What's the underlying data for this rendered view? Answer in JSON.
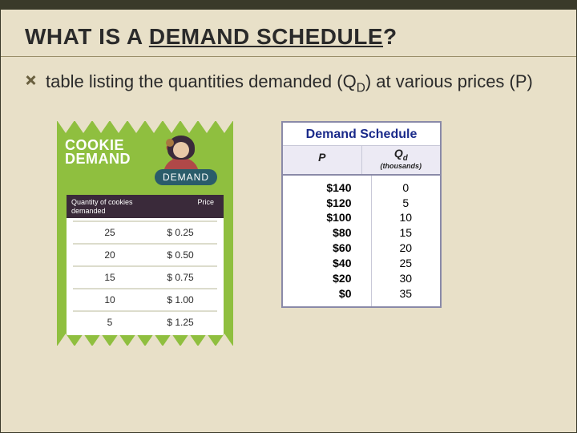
{
  "title_prefix": "WHAT IS A ",
  "title_underlined": "DEMAND SCHEDULE",
  "title_suffix": "?",
  "bullet": {
    "pre": "table listing the quantities demanded (Q",
    "sub": "D",
    "post": ") at various prices (P)"
  },
  "cookie": {
    "title_line1": "COOKIE",
    "title_line2": "DEMAND",
    "tag": "DEMAND",
    "header_qty": "Quantity of cookies demanded",
    "header_price": "Price",
    "rows": [
      {
        "qty": "25",
        "price": "$ 0.25"
      },
      {
        "qty": "20",
        "price": "$ 0.50"
      },
      {
        "qty": "15",
        "price": "$ 0.75"
      },
      {
        "qty": "10",
        "price": "$ 1.00"
      },
      {
        "qty": "5",
        "price": "$ 1.25"
      }
    ],
    "colors": {
      "bg": "#8fbf3f",
      "header_bg": "#3a2a3a",
      "tag_bg": "#2a5c6a",
      "shirt": "#b04848"
    }
  },
  "schedule": {
    "title": "Demand Schedule",
    "headers": {
      "p": "P",
      "q_main": "Q",
      "q_sub": "d",
      "q_units": "(thousands)"
    },
    "rows": [
      {
        "p": "$140",
        "q": "0"
      },
      {
        "p": "$120",
        "q": "5"
      },
      {
        "p": "$100",
        "q": "10"
      },
      {
        "p": "$80",
        "q": "15"
      },
      {
        "p": "$60",
        "q": "20"
      },
      {
        "p": "$40",
        "q": "25"
      },
      {
        "p": "$20",
        "q": "30"
      },
      {
        "p": "$0",
        "q": "35"
      }
    ],
    "colors": {
      "border": "#8a8aa8",
      "header_bg": "#eceaf4",
      "title_color": "#1a2a8a"
    }
  },
  "slide": {
    "background": "#e8e0c8",
    "topbar": "#3a3a2a"
  }
}
